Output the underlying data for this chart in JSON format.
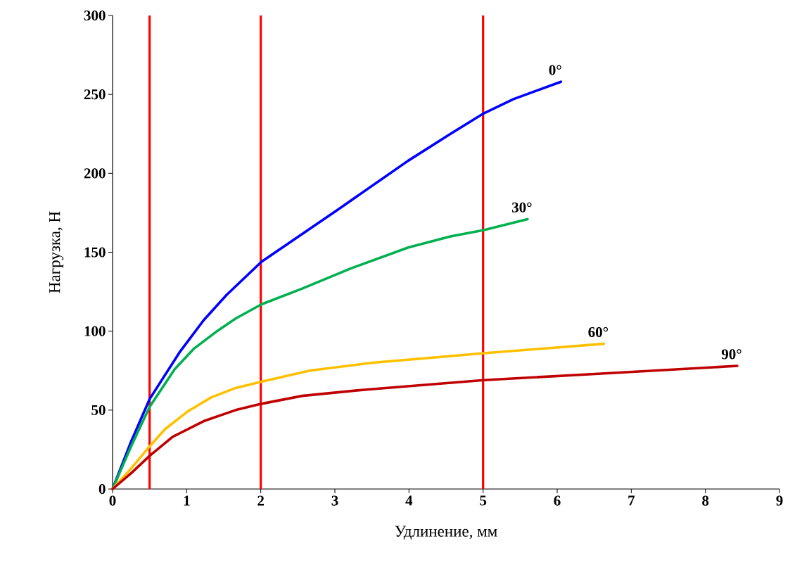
{
  "chart_data": {
    "type": "line",
    "xlabel": "Удлинение, мм",
    "ylabel": "Нагрузка, Н",
    "xlim": [
      0,
      9
    ],
    "ylim": [
      0,
      300
    ],
    "xticks": [
      0,
      1,
      2,
      3,
      4,
      5,
      6,
      7,
      8,
      9
    ],
    "yticks": [
      0,
      50,
      100,
      150,
      200,
      250,
      300
    ],
    "grid": false,
    "legend": false,
    "marker": "none",
    "line_style": "solid",
    "series": [
      {
        "name": "0°",
        "color": "#0000ff",
        "x": [
          0,
          0.25,
          0.5,
          0.91,
          1.23,
          1.54,
          2.01,
          3.04,
          3.99,
          4.56,
          5.01,
          5.41,
          6.05
        ],
        "values": [
          0,
          30,
          57,
          87,
          107,
          123,
          144,
          177,
          208,
          225,
          238,
          247,
          258
        ]
      },
      {
        "name": "30°",
        "color": "#00b050",
        "x": [
          0,
          0.25,
          0.5,
          0.84,
          1.1,
          1.41,
          1.66,
          2.01,
          2.56,
          3.23,
          3.99,
          4.56,
          5.01,
          5.6
        ],
        "values": [
          0,
          27,
          52,
          76,
          89,
          100,
          108,
          117,
          127,
          140,
          153,
          160,
          164,
          171
        ]
      },
      {
        "name": "60°",
        "color": "#ffc000",
        "x": [
          0,
          0.25,
          0.5,
          0.71,
          1.01,
          1.33,
          1.66,
          2.01,
          2.66,
          3.51,
          5.01,
          6.63
        ],
        "values": [
          0,
          13,
          27,
          38,
          49,
          58,
          64,
          68,
          75,
          80,
          86,
          92
        ]
      },
      {
        "name": "90°",
        "color": "#c00000",
        "x": [
          0,
          0.25,
          0.5,
          0.81,
          1.23,
          1.66,
          2.01,
          2.56,
          3.42,
          5.01,
          6.55,
          8.43
        ],
        "values": [
          0,
          10,
          21,
          33,
          43,
          50,
          54,
          59,
          63,
          69,
          73,
          78
        ]
      }
    ],
    "ref_lines": [
      {
        "axis": "x",
        "value": 0.5,
        "color": "#ff0000"
      },
      {
        "axis": "x",
        "value": 2,
        "color": "#ff0000"
      },
      {
        "axis": "x",
        "value": 5,
        "color": "#ff0000"
      }
    ]
  }
}
